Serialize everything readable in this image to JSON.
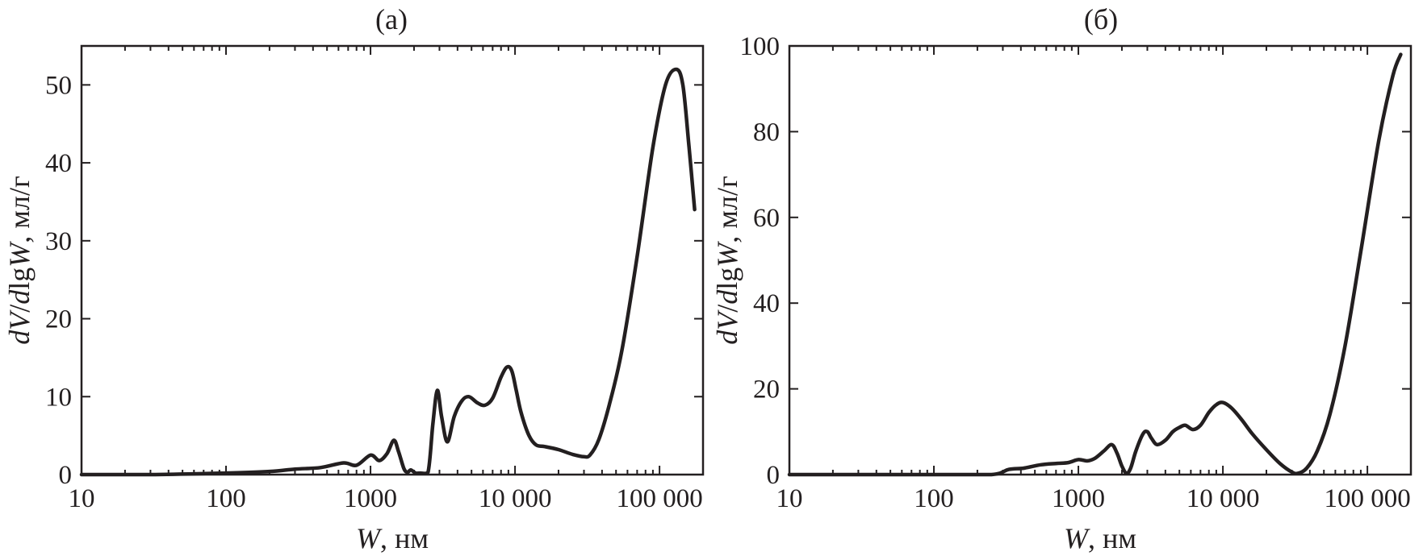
{
  "chart_data": [
    {
      "type": "line",
      "title": "(а)",
      "xlabel": {
        "var": "W",
        "unit": ", нм"
      },
      "ylabel": {
        "d1": "d",
        "v": "V",
        "slash": "/",
        "d2": "d",
        "lg": "lg",
        "w": "W",
        "unit": ", мл/г"
      },
      "xscale": "log",
      "xlim": [
        10,
        200000
      ],
      "ylim": [
        0,
        55
      ],
      "xticks": [
        10,
        100,
        1000,
        10000,
        100000
      ],
      "xtick_labels": [
        "10",
        "100",
        "1000",
        "10 000",
        "100 000"
      ],
      "yticks": [
        0,
        10,
        20,
        30,
        40,
        50
      ],
      "ytick_labels": [
        "0",
        "10",
        "20",
        "30",
        "40",
        "50"
      ],
      "grid": false,
      "legend": "none",
      "color": "#231f20",
      "series": [
        {
          "x": [
            10,
            30,
            100,
            200,
            300,
            450,
            650,
            800,
            1000,
            1150,
            1300,
            1450,
            1560,
            1700,
            1800,
            1900,
            2050,
            2200,
            2500,
            2700,
            2900,
            3100,
            3400,
            3800,
            4300,
            4800,
            5500,
            6200,
            7000,
            8000,
            8800,
            9500,
            10200,
            11000,
            12500,
            14000,
            16000,
            20000,
            25000,
            30000,
            33000,
            38000,
            45000,
            55000,
            70000,
            90000,
            110000,
            130000,
            145000,
            160000,
            175000
          ],
          "y": [
            0,
            0,
            0.2,
            0.4,
            0.7,
            0.9,
            1.5,
            1.2,
            2.5,
            1.8,
            2.7,
            4.4,
            3.0,
            0.8,
            0.3,
            0.6,
            0.2,
            0.2,
            0.3,
            6.5,
            10.8,
            7.5,
            4.2,
            7.5,
            9.5,
            10.0,
            9.2,
            8.9,
            9.8,
            12.5,
            13.8,
            13.3,
            10.8,
            8.0,
            5.0,
            3.8,
            3.6,
            3.2,
            2.6,
            2.3,
            2.5,
            4.5,
            9.0,
            16.0,
            28.0,
            42.0,
            50.0,
            52.0,
            50.0,
            42.0,
            34.0
          ]
        }
      ]
    },
    {
      "type": "line",
      "title": "(б)",
      "xlabel": {
        "var": "W",
        "unit": ", нм"
      },
      "ylabel": {
        "d1": "d",
        "v": "V",
        "slash": "/",
        "d2": "d",
        "lg": "lg",
        "w": "W",
        "unit": ", мл/г"
      },
      "xscale": "log",
      "xlim": [
        10,
        200000
      ],
      "ylim": [
        0,
        100
      ],
      "xticks": [
        10,
        100,
        1000,
        10000,
        100000
      ],
      "xtick_labels": [
        "10",
        "100",
        "1000",
        "10 000",
        "100 000"
      ],
      "yticks": [
        0,
        20,
        40,
        60,
        80,
        100
      ],
      "ytick_labels": [
        "0",
        "20",
        "40",
        "60",
        "80",
        "100"
      ],
      "grid": false,
      "legend": "none",
      "color": "#231f20",
      "series": [
        {
          "x": [
            10,
            100,
            250,
            330,
            420,
            550,
            700,
            850,
            1000,
            1150,
            1300,
            1500,
            1700,
            1850,
            2000,
            2150,
            2300,
            2500,
            2800,
            3000,
            3200,
            3500,
            4000,
            4500,
            5000,
            5500,
            6200,
            7000,
            8000,
            9000,
            10000,
            11500,
            13500,
            16000,
            20000,
            25000,
            30000,
            33000,
            38000,
            45000,
            55000,
            70000,
            90000,
            120000,
            150000,
            170000
          ],
          "y": [
            0,
            0,
            0,
            1.2,
            1.5,
            2.3,
            2.6,
            2.8,
            3.5,
            3.2,
            3.8,
            5.5,
            7.0,
            5.0,
            2.0,
            0.3,
            1.5,
            5.5,
            9.5,
            10.0,
            8.5,
            7.0,
            8.0,
            10.0,
            11.0,
            11.5,
            10.5,
            11.5,
            14.5,
            16.3,
            16.8,
            15.5,
            12.8,
            9.5,
            5.8,
            2.5,
            0.6,
            0.3,
            1.5,
            5.5,
            14.0,
            30.0,
            52.0,
            78.0,
            93.0,
            98.0
          ]
        }
      ]
    }
  ]
}
